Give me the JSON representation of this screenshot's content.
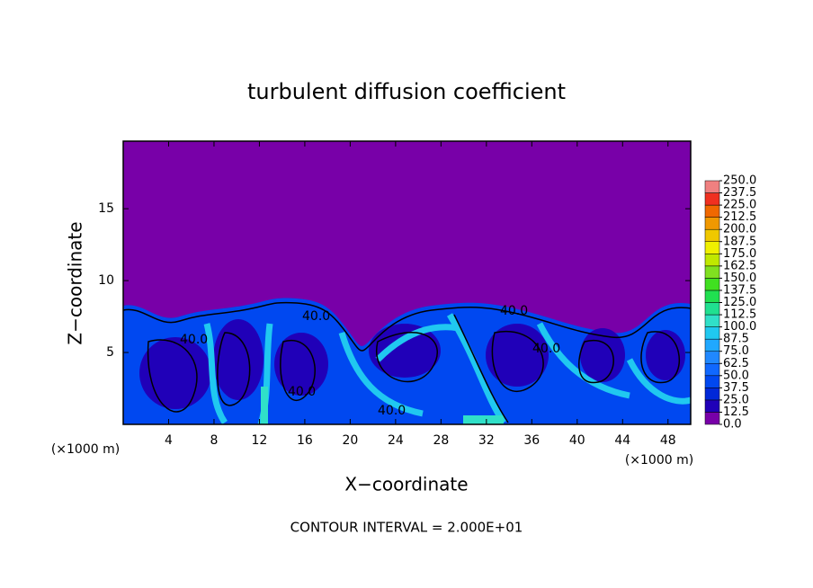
{
  "chart_data": {
    "type": "contour",
    "title": "turbulent diffusion coefficient",
    "x_label": "X−coordinate",
    "y_label": "Z−coordinate",
    "x_unit": "(×1000 m)",
    "annotation": "CONTOUR INTERVAL = 2.000E+01",
    "contour_label": "40.0",
    "xlim": [
      0,
      50
    ],
    "ylim": [
      0,
      19.7
    ],
    "xticks": [
      4,
      8,
      12,
      16,
      20,
      24,
      28,
      32,
      36,
      40,
      44,
      48
    ],
    "yticks": [
      5,
      10,
      15
    ],
    "colorbar": {
      "levels": [
        {
          "value": 0,
          "label": "0.0"
        },
        {
          "value": 12.5,
          "label": "12.5"
        },
        {
          "value": 25,
          "label": "25.0"
        },
        {
          "value": 37.5,
          "label": "37.5"
        },
        {
          "value": 50,
          "label": "50.0"
        },
        {
          "value": 62.5,
          "label": "62.5"
        },
        {
          "value": 75,
          "label": "75.0"
        },
        {
          "value": 87.5,
          "label": "87.5"
        },
        {
          "value": 100,
          "label": "100.0"
        },
        {
          "value": 112.5,
          "label": "112.5"
        },
        {
          "value": 125,
          "label": "125.0"
        },
        {
          "value": 137.5,
          "label": "137.5"
        },
        {
          "value": 150,
          "label": "150.0"
        },
        {
          "value": 162.5,
          "label": "162.5"
        },
        {
          "value": 175,
          "label": "175.0"
        },
        {
          "value": 187.5,
          "label": "187.5"
        },
        {
          "value": 200,
          "label": "200.0"
        },
        {
          "value": 212.5,
          "label": "212.5"
        },
        {
          "value": 225,
          "label": "225.0"
        },
        {
          "value": 237.5,
          "label": "237.5"
        },
        {
          "value": 250,
          "label": "250.0"
        }
      ],
      "colors": [
        "#7800a8",
        "#2000b8",
        "#0028d8",
        "#0048f0",
        "#1068ff",
        "#2088ff",
        "#20a8ff",
        "#20c8f0",
        "#30e0c8",
        "#20e090",
        "#20e050",
        "#40e020",
        "#80e020",
        "#c0e800",
        "#f0f000",
        "#f0c800",
        "#f09800",
        "#f06800",
        "#f03020",
        "#f08080"
      ]
    }
  }
}
